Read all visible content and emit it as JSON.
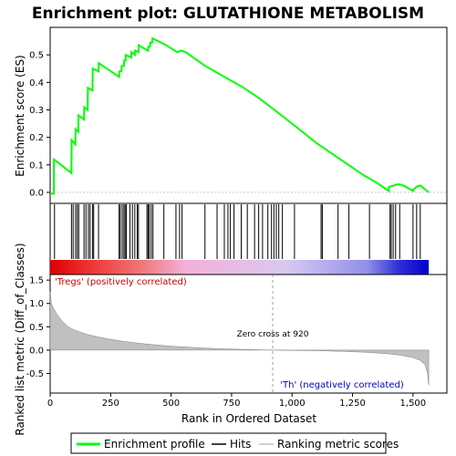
{
  "chart_data": {
    "type": "line",
    "title": "Enrichment plot: GLUTATHIONE METABOLISM",
    "xlabel": "Rank in Ordered Dataset",
    "x_ticks": [
      0,
      250,
      500,
      750,
      1000,
      1250,
      1500
    ],
    "xlim": [
      0,
      1640
    ],
    "panels": {
      "enrichment": {
        "ylabel": "Enrichment score (ES)",
        "y_ticks": [
          "0.0",
          "0.1",
          "0.2",
          "0.3",
          "0.4",
          "0.5"
        ],
        "y_tick_values": [
          0,
          0.1,
          0.2,
          0.3,
          0.4,
          0.5
        ],
        "ylim": [
          -0.04,
          0.6
        ],
        "series": [
          {
            "name": "Enrichment profile",
            "color": "#00ff00",
            "x": [
              0,
              15,
              16,
              88,
              89,
              104,
              105,
              116,
              117,
              140,
              141,
              155,
              156,
              175,
              176,
              200,
              201,
              285,
              286,
              295,
              296,
              305,
              306,
              312,
              313,
              335,
              336,
              350,
              351,
              365,
              366,
              405,
              406,
              413,
              414,
              422,
              423,
              435,
              480,
              525,
              540,
              560,
              640,
              700,
              760,
              800,
              860,
              920,
              1000,
              1100,
              1200,
              1300,
              1350,
              1400,
              1401,
              1420,
              1440,
              1460,
              1480,
              1500,
              1501,
              1515,
              1530,
              1565
            ],
            "y": [
              -0.005,
              -0.005,
              0.12,
              0.07,
              0.19,
              0.175,
              0.23,
              0.22,
              0.28,
              0.265,
              0.31,
              0.3,
              0.38,
              0.37,
              0.45,
              0.44,
              0.47,
              0.42,
              0.44,
              0.44,
              0.46,
              0.46,
              0.48,
              0.48,
              0.5,
              0.49,
              0.51,
              0.5,
              0.515,
              0.51,
              0.535,
              0.515,
              0.53,
              0.53,
              0.545,
              0.545,
              0.56,
              0.555,
              0.535,
              0.51,
              0.515,
              0.51,
              0.46,
              0.43,
              0.4,
              0.38,
              0.345,
              0.305,
              0.25,
              0.18,
              0.12,
              0.06,
              0.035,
              0.005,
              0.02,
              0.025,
              0.03,
              0.025,
              0.015,
              0.005,
              0.01,
              0.02,
              0.025,
              0.0
            ]
          }
        ]
      },
      "hits": {
        "name": "Hits",
        "color": "#000000",
        "positions": [
          18,
          88,
          95,
          105,
          112,
          118,
          140,
          148,
          158,
          165,
          175,
          180,
          200,
          285,
          290,
          298,
          305,
          310,
          315,
          330,
          340,
          350,
          360,
          365,
          400,
          405,
          410,
          418,
          425,
          470,
          520,
          535,
          545,
          640,
          690,
          720,
          735,
          745,
          760,
          790,
          815,
          845,
          862,
          878,
          900,
          915,
          925,
          935,
          945,
          960,
          1010,
          1120,
          1125,
          1190,
          1235,
          1320,
          1405,
          1410,
          1418,
          1428,
          1445,
          1500,
          1515,
          1530
        ]
      },
      "ranked_metric": {
        "name": "Ranking metric scores",
        "color": "#c0c0c0",
        "ylabel": "Ranked list metric (Diff_of_Classes)",
        "y_ticks": [
          "-0.5",
          "0.0",
          "0.5",
          "1.0",
          "1.5"
        ],
        "y_tick_values": [
          -0.5,
          0,
          0.5,
          1.0,
          1.5
        ],
        "ylim": [
          -0.92,
          1.62
        ],
        "x": [
          0,
          5,
          15,
          30,
          50,
          75,
          100,
          150,
          200,
          250,
          300,
          400,
          500,
          600,
          700,
          800,
          900,
          920,
          1000,
          1100,
          1200,
          1300,
          1400,
          1450,
          1500,
          1530,
          1550,
          1560,
          1565
        ],
        "y": [
          1.25,
          1.0,
          0.88,
          0.75,
          0.62,
          0.5,
          0.43,
          0.34,
          0.28,
          0.23,
          0.19,
          0.13,
          0.085,
          0.055,
          0.03,
          0.015,
          0.003,
          0.0,
          -0.005,
          -0.012,
          -0.025,
          -0.045,
          -0.08,
          -0.11,
          -0.16,
          -0.22,
          -0.32,
          -0.5,
          -0.75
        ]
      }
    },
    "annotations": {
      "positive": "'Tregs' (positively correlated)",
      "negative": "'Th' (negatively correlated)",
      "zero_cross": "Zero cross at 920",
      "zero_cross_x": 920
    },
    "color_bar": {
      "range": [
        0,
        1565
      ],
      "stops": [
        {
          "at": 0,
          "color": "#dd0000"
        },
        {
          "at": 200,
          "color": "#f04040"
        },
        {
          "at": 380,
          "color": "#f07878"
        },
        {
          "at": 560,
          "color": "#f5b0d8"
        },
        {
          "at": 980,
          "color": "#d8c8f0"
        },
        {
          "at": 1310,
          "color": "#9090e8"
        },
        {
          "at": 1440,
          "color": "#3030d8"
        },
        {
          "at": 1565,
          "color": "#0000cc"
        }
      ]
    },
    "legend": {
      "placement": "bottom",
      "entries": [
        {
          "label": "Enrichment profile",
          "color": "#00ff00"
        },
        {
          "label": "Hits",
          "color": "#000000"
        },
        {
          "label": "Ranking metric scores",
          "color": "#c0c0c0"
        }
      ]
    }
  }
}
